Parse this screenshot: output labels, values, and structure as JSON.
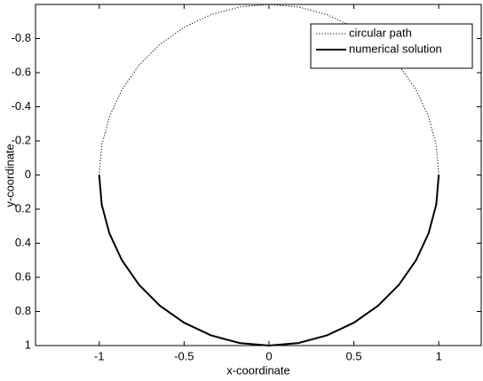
{
  "chart_data": {
    "type": "line",
    "xlabel": "x-coordinate",
    "ylabel": "y-coordinate",
    "xlim": [
      -1.375,
      1.25
    ],
    "ylim": [
      -1,
      1
    ],
    "y_reversed": true,
    "xticks": [
      -1,
      -0.5,
      0,
      0.5,
      1
    ],
    "yticks": [
      -0.8,
      -0.6,
      -0.4,
      -0.2,
      0,
      0.2,
      0.4,
      0.6,
      0.8,
      1
    ],
    "legend": "upper right",
    "series": [
      {
        "name": "circular path",
        "color": "#000000",
        "style": "dotted",
        "x": [
          1,
          0.985,
          0.94,
          0.866,
          0.766,
          0.643,
          0.5,
          0.342,
          0.174,
          0,
          -0.174,
          -0.342,
          -0.5,
          -0.643,
          -0.766,
          -0.866,
          -0.94,
          -0.985,
          -1,
          -0.985,
          -0.94,
          -0.866,
          -0.766,
          -0.643,
          -0.5,
          -0.342,
          -0.174,
          0,
          0.174,
          0.342,
          0.5,
          0.643,
          0.766,
          0.866,
          0.94,
          0.985,
          1
        ],
        "values": [
          0,
          0.174,
          0.342,
          0.5,
          0.643,
          0.766,
          0.866,
          0.94,
          0.985,
          1,
          0.985,
          0.94,
          0.866,
          0.766,
          0.643,
          0.5,
          0.342,
          0.174,
          0,
          -0.174,
          -0.342,
          -0.5,
          -0.643,
          -0.766,
          -0.866,
          -0.94,
          -0.985,
          -1,
          -0.985,
          -0.94,
          -0.866,
          -0.766,
          -0.643,
          -0.5,
          -0.342,
          -0.174,
          0
        ]
      },
      {
        "name": "numerical solution",
        "color": "#000000",
        "style": "solid",
        "x": [
          1,
          0.985,
          0.94,
          0.866,
          0.766,
          0.643,
          0.5,
          0.342,
          0.174,
          0,
          -0.174,
          -0.342,
          -0.5,
          -0.643,
          -0.766,
          -0.866,
          -0.94,
          -0.985,
          -1
        ],
        "values": [
          0,
          0.174,
          0.342,
          0.5,
          0.643,
          0.766,
          0.866,
          0.94,
          0.985,
          1,
          0.985,
          0.94,
          0.866,
          0.766,
          0.643,
          0.5,
          0.342,
          0.174,
          0
        ]
      }
    ]
  }
}
